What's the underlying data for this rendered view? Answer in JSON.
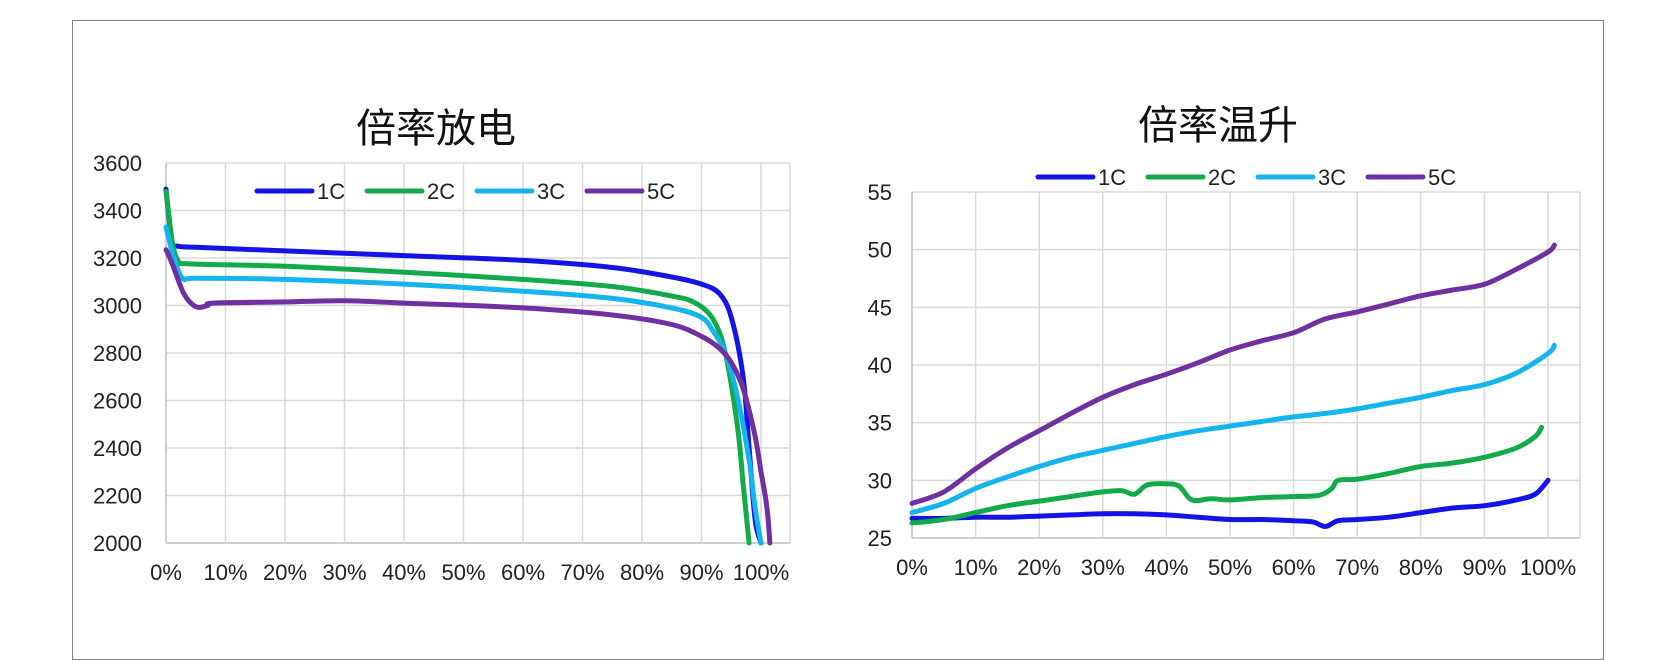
{
  "chart_data": [
    {
      "type": "line",
      "title": "倍率放电",
      "xlabel": "",
      "ylabel": "",
      "x_ticks": [
        "0%",
        "10%",
        "20%",
        "30%",
        "40%",
        "50%",
        "60%",
        "70%",
        "80%",
        "90%",
        "100%"
      ],
      "y_ticks": [
        "2000",
        "2200",
        "2400",
        "2600",
        "2800",
        "3000",
        "3200",
        "3400",
        "3600"
      ],
      "xlim": [
        0,
        105
      ],
      "ylim": [
        2000,
        3600
      ],
      "grid": true,
      "legend": "top",
      "series": [
        {
          "name": "1C",
          "color": "#1414e6",
          "points": [
            [
              0,
              3490
            ],
            [
              1,
              3270
            ],
            [
              2,
              3250
            ],
            [
              5,
              3245
            ],
            [
              20,
              3230
            ],
            [
              40,
              3210
            ],
            [
              60,
              3190
            ],
            [
              75,
              3160
            ],
            [
              85,
              3120
            ],
            [
              90,
              3090
            ],
            [
              93,
              3050
            ],
            [
              95,
              2950
            ],
            [
              97,
              2700
            ],
            [
              98,
              2400
            ],
            [
              99,
              2100
            ],
            [
              100,
              2000
            ]
          ]
        },
        {
          "name": "2C",
          "color": "#12aa4a",
          "points": [
            [
              0,
              3480
            ],
            [
              1,
              3280
            ],
            [
              2,
              3190
            ],
            [
              4,
              3175
            ],
            [
              20,
              3165
            ],
            [
              40,
              3140
            ],
            [
              60,
              3110
            ],
            [
              75,
              3080
            ],
            [
              85,
              3040
            ],
            [
              89,
              3010
            ],
            [
              92,
              2940
            ],
            [
              94,
              2800
            ],
            [
              96,
              2500
            ],
            [
              97,
              2250
            ],
            [
              98,
              2000
            ]
          ]
        },
        {
          "name": "3C",
          "color": "#14b4ec",
          "points": [
            [
              0,
              3330
            ],
            [
              1,
              3230
            ],
            [
              2,
              3150
            ],
            [
              3,
              3110
            ],
            [
              5,
              3115
            ],
            [
              20,
              3110
            ],
            [
              40,
              3090
            ],
            [
              60,
              3060
            ],
            [
              75,
              3030
            ],
            [
              85,
              2990
            ],
            [
              90,
              2950
            ],
            [
              92,
              2890
            ],
            [
              94,
              2800
            ],
            [
              96,
              2620
            ],
            [
              98,
              2350
            ],
            [
              99,
              2150
            ],
            [
              100,
              2000
            ]
          ]
        },
        {
          "name": "5C",
          "color": "#7030a0",
          "points": [
            [
              0,
              3235
            ],
            [
              1,
              3180
            ],
            [
              3,
              3050
            ],
            [
              5,
              2995
            ],
            [
              7,
              3000
            ],
            [
              8,
              3010
            ],
            [
              20,
              3015
            ],
            [
              30,
              3020
            ],
            [
              40,
              3010
            ],
            [
              60,
              2990
            ],
            [
              75,
              2960
            ],
            [
              85,
              2920
            ],
            [
              90,
              2870
            ],
            [
              93,
              2820
            ],
            [
              95,
              2760
            ],
            [
              97,
              2650
            ],
            [
              99,
              2450
            ],
            [
              100,
              2300
            ],
            [
              101,
              2150
            ],
            [
              101.5,
              2000
            ]
          ]
        }
      ]
    },
    {
      "type": "line",
      "title": "倍率温升",
      "xlabel": "",
      "ylabel": "",
      "x_ticks": [
        "0%",
        "10%",
        "20%",
        "30%",
        "40%",
        "50%",
        "60%",
        "70%",
        "80%",
        "90%",
        "100%"
      ],
      "y_ticks": [
        "25",
        "30",
        "35",
        "40",
        "45",
        "50",
        "55"
      ],
      "xlim": [
        0,
        105
      ],
      "ylim": [
        25,
        55
      ],
      "grid": true,
      "legend": "top",
      "series": [
        {
          "name": "1C",
          "color": "#1414e6",
          "points": [
            [
              0,
              26.7
            ],
            [
              5,
              26.7
            ],
            [
              10,
              26.8
            ],
            [
              15,
              26.8
            ],
            [
              20,
              26.9
            ],
            [
              25,
              27.0
            ],
            [
              30,
              27.1
            ],
            [
              35,
              27.1
            ],
            [
              40,
              27.0
            ],
            [
              45,
              26.8
            ],
            [
              50,
              26.6
            ],
            [
              55,
              26.6
            ],
            [
              60,
              26.5
            ],
            [
              63,
              26.4
            ],
            [
              65,
              26.0
            ],
            [
              67,
              26.5
            ],
            [
              70,
              26.6
            ],
            [
              75,
              26.8
            ],
            [
              80,
              27.2
            ],
            [
              85,
              27.6
            ],
            [
              90,
              27.8
            ],
            [
              95,
              28.3
            ],
            [
              98,
              28.8
            ],
            [
              100,
              30.0
            ]
          ]
        },
        {
          "name": "2C",
          "color": "#12aa4a",
          "points": [
            [
              0,
              26.3
            ],
            [
              5,
              26.6
            ],
            [
              10,
              27.2
            ],
            [
              15,
              27.8
            ],
            [
              20,
              28.2
            ],
            [
              25,
              28.6
            ],
            [
              30,
              29.0
            ],
            [
              33,
              29.1
            ],
            [
              35,
              28.8
            ],
            [
              37,
              29.6
            ],
            [
              40,
              29.7
            ],
            [
              42,
              29.5
            ],
            [
              44,
              28.3
            ],
            [
              47,
              28.4
            ],
            [
              50,
              28.3
            ],
            [
              55,
              28.5
            ],
            [
              60,
              28.6
            ],
            [
              64,
              28.7
            ],
            [
              66,
              29.3
            ],
            [
              67,
              30.0
            ],
            [
              70,
              30.1
            ],
            [
              75,
              30.6
            ],
            [
              80,
              31.2
            ],
            [
              85,
              31.5
            ],
            [
              90,
              32.0
            ],
            [
              95,
              32.8
            ],
            [
              98,
              33.8
            ],
            [
              99,
              34.6
            ]
          ]
        },
        {
          "name": "3C",
          "color": "#14b4ec",
          "points": [
            [
              0,
              27.2
            ],
            [
              5,
              28.0
            ],
            [
              10,
              29.3
            ],
            [
              15,
              30.3
            ],
            [
              20,
              31.2
            ],
            [
              25,
              32.0
            ],
            [
              30,
              32.6
            ],
            [
              35,
              33.2
            ],
            [
              40,
              33.8
            ],
            [
              45,
              34.3
            ],
            [
              50,
              34.7
            ],
            [
              55,
              35.1
            ],
            [
              60,
              35.5
            ],
            [
              65,
              35.8
            ],
            [
              70,
              36.2
            ],
            [
              75,
              36.7
            ],
            [
              80,
              37.2
            ],
            [
              85,
              37.8
            ],
            [
              90,
              38.3
            ],
            [
              95,
              39.3
            ],
            [
              100,
              41.0
            ],
            [
              101,
              41.7
            ]
          ]
        },
        {
          "name": "5C",
          "color": "#7030a0",
          "points": [
            [
              0,
              28.0
            ],
            [
              5,
              29.0
            ],
            [
              10,
              31.0
            ],
            [
              15,
              32.8
            ],
            [
              20,
              34.3
            ],
            [
              25,
              35.8
            ],
            [
              30,
              37.2
            ],
            [
              35,
              38.3
            ],
            [
              40,
              39.2
            ],
            [
              45,
              40.2
            ],
            [
              50,
              41.3
            ],
            [
              55,
              42.1
            ],
            [
              60,
              42.8
            ],
            [
              65,
              44.0
            ],
            [
              70,
              44.6
            ],
            [
              75,
              45.3
            ],
            [
              80,
              46.0
            ],
            [
              85,
              46.5
            ],
            [
              90,
              47.0
            ],
            [
              95,
              48.3
            ],
            [
              100,
              49.8
            ],
            [
              101,
              50.4
            ]
          ]
        }
      ]
    }
  ]
}
